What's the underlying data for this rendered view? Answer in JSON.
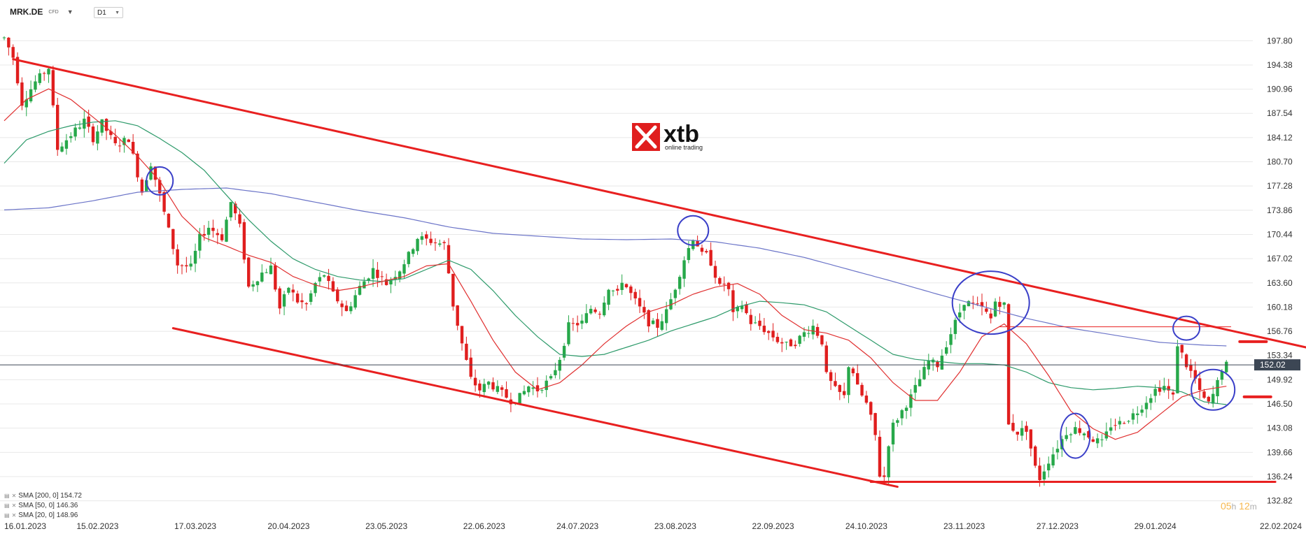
{
  "header": {
    "symbol": "MRK.DE",
    "instrument_type": "CFD",
    "timeframe": "D1",
    "symbol_caret": "▼",
    "tf_caret": "▼"
  },
  "logo": {
    "brand": "xtb",
    "tagline": "online trading"
  },
  "countdown": {
    "hours": "05",
    "h_suffix": "h",
    "minutes": "12",
    "m_suffix": "m"
  },
  "colors": {
    "bull": "#27a84a",
    "bear": "#e01e1e",
    "sma200": "#6b74c8",
    "sma50": "#2d9a6a",
    "sma20": "#e03030",
    "trendline": "#e82020",
    "circle": "#3a3fc8",
    "price_tag": "#3c4654",
    "grid": "#e8e8e8"
  },
  "chart_data": {
    "type": "candlestick",
    "ylim": [
      131.5,
      200.0
    ],
    "y_ticks": [
      "197.80",
      "194.38",
      "190.96",
      "187.54",
      "184.12",
      "180.70",
      "177.28",
      "173.86",
      "170.44",
      "167.02",
      "163.60",
      "160.18",
      "156.76",
      "153.34",
      "149.92",
      "146.50",
      "143.08",
      "139.66",
      "136.24",
      "132.82"
    ],
    "x_labels": [
      {
        "label": "16.01.2023",
        "i": 0
      },
      {
        "label": "15.02.2023",
        "i": 21
      },
      {
        "label": "17.03.2023",
        "i": 43
      },
      {
        "label": "20.04.2023",
        "i": 64
      },
      {
        "label": "23.05.2023",
        "i": 86
      },
      {
        "label": "22.06.2023",
        "i": 108
      },
      {
        "label": "24.07.2023",
        "i": 129
      },
      {
        "label": "23.08.2023",
        "i": 151
      },
      {
        "label": "22.09.2023",
        "i": 173
      },
      {
        "label": "24.10.2023",
        "i": 194
      },
      {
        "label": "23.11.2023",
        "i": 216
      },
      {
        "label": "27.12.2023",
        "i": 237
      },
      {
        "label": "29.01.2024",
        "i": 259
      },
      {
        "label": "22.02.2024",
        "i": 281
      }
    ],
    "price_waypoints": [
      [
        0,
        198.2
      ],
      [
        2,
        195.5
      ],
      [
        4,
        189.0
      ],
      [
        7,
        192.0
      ],
      [
        10,
        194.0
      ],
      [
        12,
        182.5
      ],
      [
        15,
        184.5
      ],
      [
        18,
        186.5
      ],
      [
        20,
        184.0
      ],
      [
        22,
        186.2
      ],
      [
        25,
        183.0
      ],
      [
        28,
        184.0
      ],
      [
        31,
        176.5
      ],
      [
        33,
        180.5
      ],
      [
        35,
        176.0
      ],
      [
        37,
        171.0
      ],
      [
        39,
        166.2
      ],
      [
        42,
        165.8
      ],
      [
        44,
        170.0
      ],
      [
        46,
        171.5
      ],
      [
        49,
        170.0
      ],
      [
        51,
        175.0
      ],
      [
        53,
        171.5
      ],
      [
        55,
        163.0
      ],
      [
        58,
        165.0
      ],
      [
        60,
        165.8
      ],
      [
        62,
        160.0
      ],
      [
        64,
        163.0
      ],
      [
        66,
        161.0
      ],
      [
        68,
        160.5
      ],
      [
        70,
        163.5
      ],
      [
        72,
        164.8
      ],
      [
        74,
        162.0
      ],
      [
        77,
        159.5
      ],
      [
        80,
        163.0
      ],
      [
        83,
        165.5
      ],
      [
        86,
        163.5
      ],
      [
        89,
        165.5
      ],
      [
        91,
        167.5
      ],
      [
        93,
        170.0
      ],
      [
        96,
        169.5
      ],
      [
        99,
        169.0
      ],
      [
        100,
        165.0
      ],
      [
        101,
        160.5
      ],
      [
        103,
        155.0
      ],
      [
        105,
        150.0
      ],
      [
        107,
        148.5
      ],
      [
        109,
        149.5
      ],
      [
        111,
        148.5
      ],
      [
        114,
        147.0
      ],
      [
        116,
        147.5
      ],
      [
        118,
        149.0
      ],
      [
        120,
        148.5
      ],
      [
        123,
        150.0
      ],
      [
        125,
        153.0
      ],
      [
        127,
        157.5
      ],
      [
        130,
        158.0
      ],
      [
        132,
        160.0
      ],
      [
        134,
        159.5
      ],
      [
        136,
        163.0
      ],
      [
        138,
        162.0
      ],
      [
        139,
        164.0
      ],
      [
        141,
        162.0
      ],
      [
        143,
        160.0
      ],
      [
        145,
        158.0
      ],
      [
        147,
        157.5
      ],
      [
        149,
        159.5
      ],
      [
        151,
        163.0
      ],
      [
        153,
        167.0
      ],
      [
        154,
        168.5
      ],
      [
        155,
        170.0
      ],
      [
        156,
        169.0
      ],
      [
        157,
        167.5
      ],
      [
        158,
        167.5
      ],
      [
        159,
        166.5
      ],
      [
        161,
        163.0
      ],
      [
        162,
        163.5
      ],
      [
        163,
        162.5
      ],
      [
        164,
        159.0
      ],
      [
        166,
        160.5
      ],
      [
        168,
        158.0
      ],
      [
        170,
        157.5
      ],
      [
        172,
        156.5
      ],
      [
        174,
        155.5
      ],
      [
        176,
        154.8
      ],
      [
        178,
        155.2
      ],
      [
        180,
        156.5
      ],
      [
        182,
        157.5
      ],
      [
        184,
        155.3
      ],
      [
        185,
        150.5
      ],
      [
        187,
        148.5
      ],
      [
        189,
        147.5
      ],
      [
        190,
        152.0
      ],
      [
        191,
        151.0
      ],
      [
        192,
        148.8
      ],
      [
        194,
        146.5
      ],
      [
        195,
        144.5
      ],
      [
        196,
        142.0
      ],
      [
        197,
        136.5
      ],
      [
        198,
        136.2
      ],
      [
        199,
        141.0
      ],
      [
        200,
        143.5
      ],
      [
        202,
        145.5
      ],
      [
        204,
        147.5
      ],
      [
        206,
        150.0
      ],
      [
        208,
        152.5
      ],
      [
        210,
        152.0
      ],
      [
        212,
        155.0
      ],
      [
        214,
        158.0
      ],
      [
        216,
        161.0
      ],
      [
        218,
        160.5
      ],
      [
        220,
        160.0
      ],
      [
        222,
        158.5
      ],
      [
        223,
        161.0
      ],
      [
        225,
        160.5
      ],
      [
        226,
        143.5
      ],
      [
        228,
        142.5
      ],
      [
        230,
        143.0
      ],
      [
        232,
        137.5
      ],
      [
        233,
        136.0
      ],
      [
        235,
        138.5
      ],
      [
        237,
        140.5
      ],
      [
        239,
        142.5
      ],
      [
        241,
        143.0
      ],
      [
        243,
        142.5
      ],
      [
        245,
        141.5
      ],
      [
        247,
        141.0
      ],
      [
        249,
        143.5
      ],
      [
        251,
        143.8
      ],
      [
        253,
        144.5
      ],
      [
        255,
        145.5
      ],
      [
        257,
        147.0
      ],
      [
        259,
        148.5
      ],
      [
        261,
        149.0
      ],
      [
        263,
        147.5
      ],
      [
        264,
        155.0
      ],
      [
        265,
        153.5
      ],
      [
        266,
        152.0
      ],
      [
        268,
        150.0
      ],
      [
        269,
        148.0
      ],
      [
        270,
        147.2
      ],
      [
        271,
        146.5
      ],
      [
        272,
        147.8
      ],
      [
        273,
        149.5
      ],
      [
        274,
        151.5
      ],
      [
        275,
        152.0
      ]
    ],
    "last_price": 152.02,
    "last_price_label": "152.02",
    "sma_legend": [
      {
        "label": "SMA [200,  0] 154.72",
        "period": 200,
        "key": "sma200"
      },
      {
        "label": "SMA [50,  0] 146.36",
        "period": 50,
        "key": "sma50"
      },
      {
        "label": "SMA [20,  0] 148.96",
        "period": 20,
        "key": "sma20"
      }
    ],
    "sma200_waypoints": [
      [
        0,
        173.9
      ],
      [
        10,
        174.2
      ],
      [
        20,
        175.2
      ],
      [
        30,
        176.4
      ],
      [
        40,
        176.8
      ],
      [
        50,
        177.0
      ],
      [
        60,
        176.2
      ],
      [
        70,
        175.0
      ],
      [
        80,
        173.8
      ],
      [
        90,
        172.8
      ],
      [
        100,
        171.5
      ],
      [
        110,
        170.6
      ],
      [
        120,
        170.2
      ],
      [
        130,
        169.8
      ],
      [
        140,
        169.7
      ],
      [
        150,
        169.8
      ],
      [
        160,
        169.4
      ],
      [
        170,
        168.5
      ],
      [
        180,
        167.2
      ],
      [
        190,
        165.5
      ],
      [
        200,
        163.8
      ],
      [
        210,
        162.0
      ],
      [
        220,
        160.3
      ],
      [
        230,
        158.6
      ],
      [
        240,
        157.2
      ],
      [
        250,
        156.2
      ],
      [
        260,
        155.2
      ],
      [
        270,
        154.8
      ],
      [
        275,
        154.7
      ]
    ],
    "sma50_waypoints": [
      [
        0,
        180.5
      ],
      [
        5,
        183.8
      ],
      [
        10,
        185.0
      ],
      [
        15,
        185.8
      ],
      [
        20,
        186.3
      ],
      [
        25,
        186.5
      ],
      [
        30,
        185.8
      ],
      [
        35,
        184.0
      ],
      [
        40,
        182.0
      ],
      [
        45,
        179.5
      ],
      [
        50,
        176.0
      ],
      [
        55,
        172.5
      ],
      [
        60,
        169.5
      ],
      [
        65,
        167.0
      ],
      [
        70,
        165.5
      ],
      [
        75,
        164.5
      ],
      [
        80,
        164.0
      ],
      [
        85,
        163.8
      ],
      [
        90,
        164.2
      ],
      [
        95,
        165.5
      ],
      [
        100,
        166.8
      ],
      [
        105,
        165.5
      ],
      [
        110,
        162.5
      ],
      [
        115,
        159.0
      ],
      [
        120,
        156.0
      ],
      [
        125,
        153.5
      ],
      [
        130,
        153.2
      ],
      [
        135,
        153.5
      ],
      [
        140,
        154.5
      ],
      [
        145,
        155.5
      ],
      [
        150,
        156.8
      ],
      [
        155,
        157.8
      ],
      [
        160,
        158.8
      ],
      [
        165,
        160.2
      ],
      [
        170,
        161.0
      ],
      [
        175,
        160.8
      ],
      [
        180,
        160.5
      ],
      [
        185,
        159.5
      ],
      [
        190,
        157.5
      ],
      [
        195,
        155.5
      ],
      [
        200,
        153.5
      ],
      [
        205,
        152.8
      ],
      [
        210,
        152.5
      ],
      [
        215,
        152.2
      ],
      [
        220,
        152.2
      ],
      [
        225,
        152.0
      ],
      [
        230,
        151.0
      ],
      [
        235,
        149.5
      ],
      [
        240,
        148.8
      ],
      [
        245,
        148.5
      ],
      [
        250,
        148.7
      ],
      [
        255,
        149.0
      ],
      [
        260,
        148.8
      ],
      [
        265,
        148.2
      ],
      [
        270,
        146.8
      ],
      [
        275,
        146.4
      ]
    ],
    "sma20_waypoints": [
      [
        0,
        186.5
      ],
      [
        5,
        189.5
      ],
      [
        10,
        191.0
      ],
      [
        15,
        189.5
      ],
      [
        20,
        187.0
      ],
      [
        25,
        184.5
      ],
      [
        30,
        181.5
      ],
      [
        35,
        178.0
      ],
      [
        40,
        173.0
      ],
      [
        45,
        170.0
      ],
      [
        50,
        168.8
      ],
      [
        55,
        167.5
      ],
      [
        60,
        166.5
      ],
      [
        65,
        164.5
      ],
      [
        70,
        163.3
      ],
      [
        75,
        162.5
      ],
      [
        80,
        163.0
      ],
      [
        85,
        163.8
      ],
      [
        90,
        164.5
      ],
      [
        95,
        166.0
      ],
      [
        100,
        166.3
      ],
      [
        105,
        161.0
      ],
      [
        110,
        155.5
      ],
      [
        115,
        151.0
      ],
      [
        120,
        148.5
      ],
      [
        125,
        149.5
      ],
      [
        130,
        152.0
      ],
      [
        135,
        155.0
      ],
      [
        140,
        157.5
      ],
      [
        145,
        159.5
      ],
      [
        150,
        160.5
      ],
      [
        155,
        162.0
      ],
      [
        160,
        163.0
      ],
      [
        165,
        163.5
      ],
      [
        170,
        162.0
      ],
      [
        175,
        159.0
      ],
      [
        180,
        157.0
      ],
      [
        185,
        156.5
      ],
      [
        190,
        155.5
      ],
      [
        195,
        153.0
      ],
      [
        200,
        149.5
      ],
      [
        205,
        147.0
      ],
      [
        210,
        147.0
      ],
      [
        215,
        151.0
      ],
      [
        220,
        156.0
      ],
      [
        225,
        157.8
      ],
      [
        230,
        155.0
      ],
      [
        235,
        150.5
      ],
      [
        240,
        145.5
      ],
      [
        245,
        143.0
      ],
      [
        250,
        141.5
      ],
      [
        255,
        142.5
      ],
      [
        260,
        145.0
      ],
      [
        265,
        147.5
      ],
      [
        270,
        148.5
      ],
      [
        275,
        149.0
      ]
    ],
    "trendlines": [
      {
        "name": "upper-resistance",
        "from": [
          2,
          195.2
        ],
        "to": [
          295,
          154.2
        ],
        "width": 3
      },
      {
        "name": "lower-support",
        "from": [
          38,
          157.2
        ],
        "to": [
          201,
          134.8
        ],
        "width": 3
      },
      {
        "name": "bottom-support",
        "from": [
          195,
          135.5
        ],
        "to": [
          286,
          135.5
        ],
        "width": 3
      },
      {
        "name": "resistance-level",
        "from": [
          224,
          157.4
        ],
        "to": [
          276,
          157.4
        ],
        "width": 1
      },
      {
        "name": "target-upper",
        "from": [
          278,
          155.3
        ],
        "to": [
          284,
          155.3
        ],
        "width": 4
      },
      {
        "name": "target-lower",
        "from": [
          279,
          147.5
        ],
        "to": [
          285,
          147.5
        ],
        "width": 4
      }
    ],
    "circles": [
      [
        35,
        178.0
      ],
      [
        155,
        171.0
      ],
      [
        222,
        160.8
      ],
      [
        241,
        142.0
      ],
      [
        266,
        157.2
      ],
      [
        272,
        148.5
      ]
    ]
  }
}
